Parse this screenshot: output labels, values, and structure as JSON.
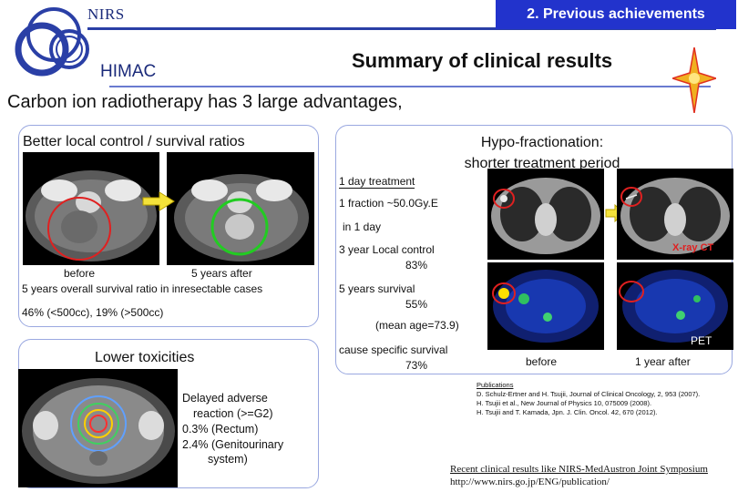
{
  "header": {
    "org": "NIRS",
    "facility": "HIMAC",
    "section_badge": "2. Previous achievements",
    "subtitle": "Summary of clinical results",
    "intro": "Carbon ion radiotherapy has 3 large advantages,"
  },
  "panel_local_control": {
    "title": "Better local control / survival ratios",
    "label_before": "before",
    "label_after": "5 years after",
    "survival_text": "5 years overall survival ratio in inresectable cases",
    "ratio_text": "46% (<500cc), 19% (>500cc)"
  },
  "panel_toxicity": {
    "title": "Lower toxicities",
    "lines": [
      "Delayed adverse",
      "reaction (>=G2)",
      "0.3% (Rectum)",
      "2.4% (Genitourinary",
      "system)"
    ]
  },
  "panel_hypo": {
    "title_line1": "Hypo-fractionation:",
    "title_line2": "shorter treatment period",
    "day_treatment": "1 day treatment",
    "fraction": "1 fraction ~50.0Gy.E",
    "in_one_day": "in 1 day",
    "local_control_label": "3 year Local control",
    "local_control_value": "83%",
    "survival_label": "5 years survival",
    "survival_value": "55%",
    "mean_age": "(mean age=73.9)",
    "specific_label": "cause specific survival",
    "specific_value": "73%",
    "xray_label": "X-ray CT",
    "pet_label": "PET",
    "caption_before": "before",
    "caption_after": "1 year after"
  },
  "publications": {
    "heading": "Publications",
    "lines": [
      "D. Schulz-Ertner and H. Tsujii, Journal of Clinical Oncology, 2, 953 (2007).",
      "H. Tsujii et al., New Journal of Physics 10, 075009 (2008).",
      "H. Tsujii and T. Kamada, Jpn. J. Clin. Oncol. 42, 670 (2012)."
    ]
  },
  "footer": {
    "recent": "Recent clinical results like NIRS-MedAustron Joint Symposium",
    "url": "http://www.nirs.go.jp/ENG/publication/"
  },
  "colors": {
    "badge": "#2233cc",
    "panel_border": "#9aa8e0",
    "circle_red": "#e02020",
    "circle_green": "#22cc22",
    "arrow_yellow": "#f4e23a"
  }
}
